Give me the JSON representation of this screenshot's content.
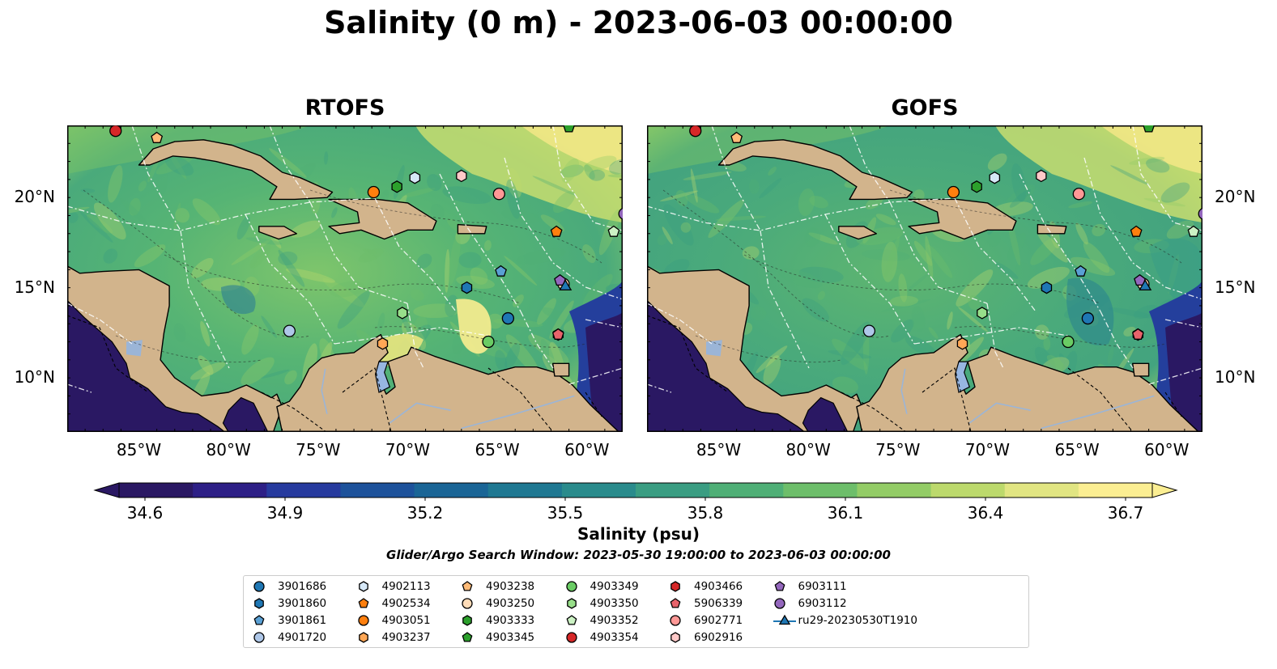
{
  "suptitle": "Salinity (0 m) - 2023-06-03 00:00:00",
  "panels": [
    {
      "title": "RTOFS"
    },
    {
      "title": "GOFS"
    }
  ],
  "axes": {
    "lon_ticks": [
      "85°W",
      "80°W",
      "75°W",
      "70°W",
      "65°W",
      "60°W"
    ],
    "lat_ticks": [
      "20°N",
      "15°N",
      "10°N"
    ]
  },
  "colorbar": {
    "label": "Salinity (psu)",
    "ticks": [
      "34.6",
      "34.9",
      "35.2",
      "35.5",
      "35.8",
      "36.1",
      "36.4",
      "36.7"
    ],
    "colormap": [
      "#2a1863",
      "#2d1f86",
      "#263a9e",
      "#1d529b",
      "#1a6596",
      "#1f7892",
      "#2a8b8c",
      "#3a9d82",
      "#4faf76",
      "#6dbe6a",
      "#93cc66",
      "#bcd96c",
      "#e1e582",
      "#fbee92"
    ]
  },
  "search_window": "Glider/Argo Search Window: 2023-05-30 19:00:00 to 2023-06-03 00:00:00",
  "legend": [
    {
      "id": "3901686",
      "color": "#1f77b4",
      "marker": "circle"
    },
    {
      "id": "3901860",
      "color": "#1f77b4",
      "marker": "hexagon"
    },
    {
      "id": "3901861",
      "color": "#5aa0d4",
      "marker": "pentagon"
    },
    {
      "id": "4901720",
      "color": "#aec7e8",
      "marker": "circle"
    },
    {
      "id": "4902113",
      "color": "#d6e8f7",
      "marker": "hexagon"
    },
    {
      "id": "4902534",
      "color": "#ff7f0e",
      "marker": "pentagon"
    },
    {
      "id": "4903051",
      "color": "#ff7f0e",
      "marker": "circle"
    },
    {
      "id": "4903237",
      "color": "#ffa756",
      "marker": "hexagon"
    },
    {
      "id": "4903238",
      "color": "#ffbb78",
      "marker": "pentagon"
    },
    {
      "id": "4903250",
      "color": "#ffdcb8",
      "marker": "circle"
    },
    {
      "id": "4903333",
      "color": "#2ca02c",
      "marker": "hexagon"
    },
    {
      "id": "4903345",
      "color": "#2ca02c",
      "marker": "pentagon"
    },
    {
      "id": "4903349",
      "color": "#6acc64",
      "marker": "circle"
    },
    {
      "id": "4903350",
      "color": "#98df8a",
      "marker": "hexagon"
    },
    {
      "id": "4903352",
      "color": "#ccf2c4",
      "marker": "pentagon"
    },
    {
      "id": "4903354",
      "color": "#d62728",
      "marker": "circle"
    },
    {
      "id": "4903466",
      "color": "#d62728",
      "marker": "hexagon"
    },
    {
      "id": "5906339",
      "color": "#e8636b",
      "marker": "pentagon"
    },
    {
      "id": "6902771",
      "color": "#ff9896",
      "marker": "circle"
    },
    {
      "id": "6902916",
      "color": "#ffc9c8",
      "marker": "hexagon"
    },
    {
      "id": "6903111",
      "color": "#9467bd",
      "marker": "pentagon"
    },
    {
      "id": "6903112",
      "color": "#9467bd",
      "marker": "circle"
    },
    {
      "id": "ru29-20230530T1910",
      "color": "#1f77b4",
      "marker": "triangle-line"
    }
  ],
  "floats": [
    {
      "id": "3901686",
      "lon": -64.4,
      "lat": 13.3
    },
    {
      "id": "3901860",
      "lon": -66.7,
      "lat": 15.0
    },
    {
      "id": "3901861",
      "lon": -64.8,
      "lat": 15.9
    },
    {
      "id": "4901720",
      "lon": -76.6,
      "lat": 12.6
    },
    {
      "id": "4902113",
      "lon": -69.6,
      "lat": 21.1
    },
    {
      "id": "4902534",
      "lon": -61.7,
      "lat": 18.1
    },
    {
      "id": "4903051",
      "lon": -71.9,
      "lat": 20.3
    },
    {
      "id": "4903237",
      "lon": -71.4,
      "lat": 11.9
    },
    {
      "id": "4903238",
      "lon": -84.0,
      "lat": 23.3
    },
    {
      "id": "4903250",
      "lon": -61.3,
      "lat": 15.2
    },
    {
      "id": "4903333",
      "lon": -70.6,
      "lat": 20.6
    },
    {
      "id": "4903345",
      "lon": -61.0,
      "lat": 23.9
    },
    {
      "id": "4903349",
      "lon": -65.5,
      "lat": 12.0
    },
    {
      "id": "4903350",
      "lon": -70.3,
      "lat": 13.6
    },
    {
      "id": "4903352",
      "lon": -58.5,
      "lat": 18.1
    },
    {
      "id": "4903354",
      "lon": -86.3,
      "lat": 23.7
    },
    {
      "id": "4903466",
      "lon": -61.6,
      "lat": 12.4
    },
    {
      "id": "5906339",
      "lon": -61.6,
      "lat": 12.4
    },
    {
      "id": "6902771",
      "lon": -64.9,
      "lat": 20.2
    },
    {
      "id": "6902916",
      "lon": -67.0,
      "lat": 21.2
    },
    {
      "id": "6903111",
      "lon": -61.5,
      "lat": 15.4
    },
    {
      "id": "6903112",
      "lon": -57.9,
      "lat": 19.1
    },
    {
      "id": "ru29-20230530T1910",
      "lon": -61.2,
      "lat": 15.1
    }
  ]
}
